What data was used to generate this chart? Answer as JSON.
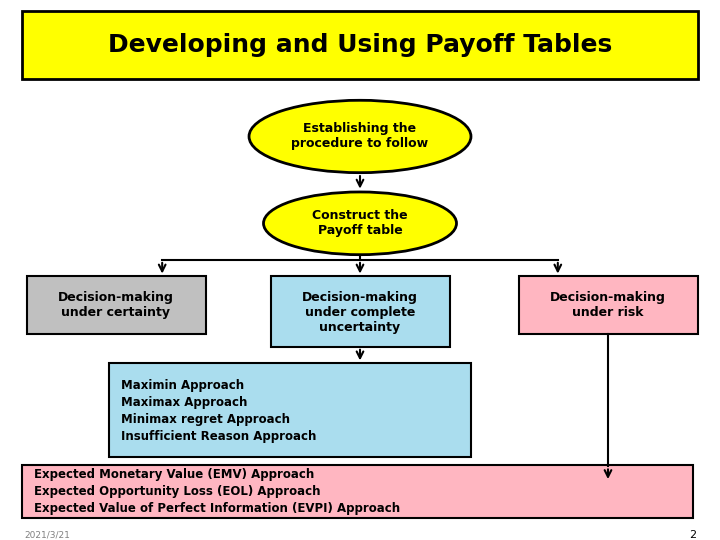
{
  "title": "Developing and Using Payoff Tables",
  "title_bg": "#FFFF00",
  "title_fontsize": 18,
  "bg_color": "#FFFFFF",
  "ellipse1_text": "Establishing the\nprocedure to follow",
  "ellipse1_color": "#FFFF00",
  "ellipse2_text": "Construct the\nPayoff table",
  "ellipse2_color": "#FFFF00",
  "box_left_text": "Decision-making\nunder certainty",
  "box_left_color": "#C0C0C0",
  "box_center_text": "Decision-making\nunder complete\nuncertainty",
  "box_center_color": "#AADDEE",
  "box_right_text": "Decision-making\nunder risk",
  "box_right_color": "#FFB6C1",
  "box_approaches_text": "Maximin Approach\nMaximax Approach\nMinimax regret Approach\nInsufficient Reason Approach",
  "box_approaches_color": "#AADDEE",
  "box_bottom_text": "Expected Monetary Value (EMV) Approach\nExpected Opportunity Loss (EOL) Approach\nExpected Value of Perfect Information (EVPI) Approach",
  "box_bottom_color": "#FFB6C1",
  "page_number": "2",
  "watermark": "2021/3/21"
}
